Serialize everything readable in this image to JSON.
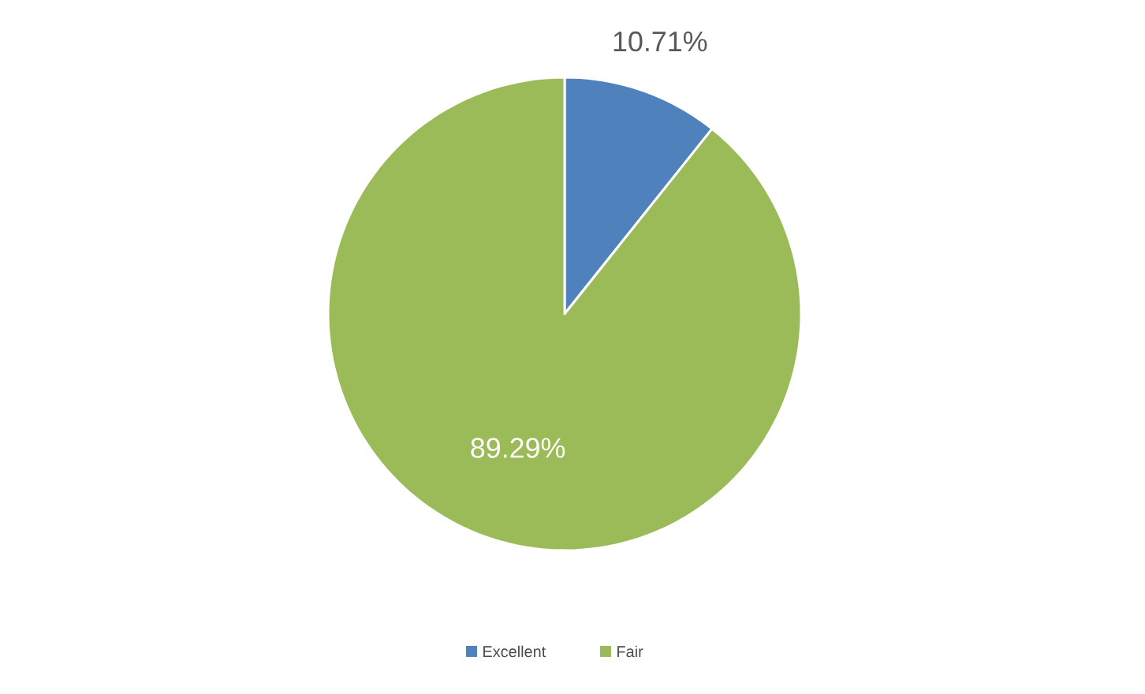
{
  "chart_data": {
    "type": "pie",
    "categories": [
      "Excellent",
      "Fair"
    ],
    "values": [
      10.71,
      89.29
    ],
    "value_labels": [
      "10.71%",
      "89.29%"
    ],
    "colors": [
      "#4f81bd",
      "#9bbb59"
    ],
    "legend": "bottom"
  }
}
